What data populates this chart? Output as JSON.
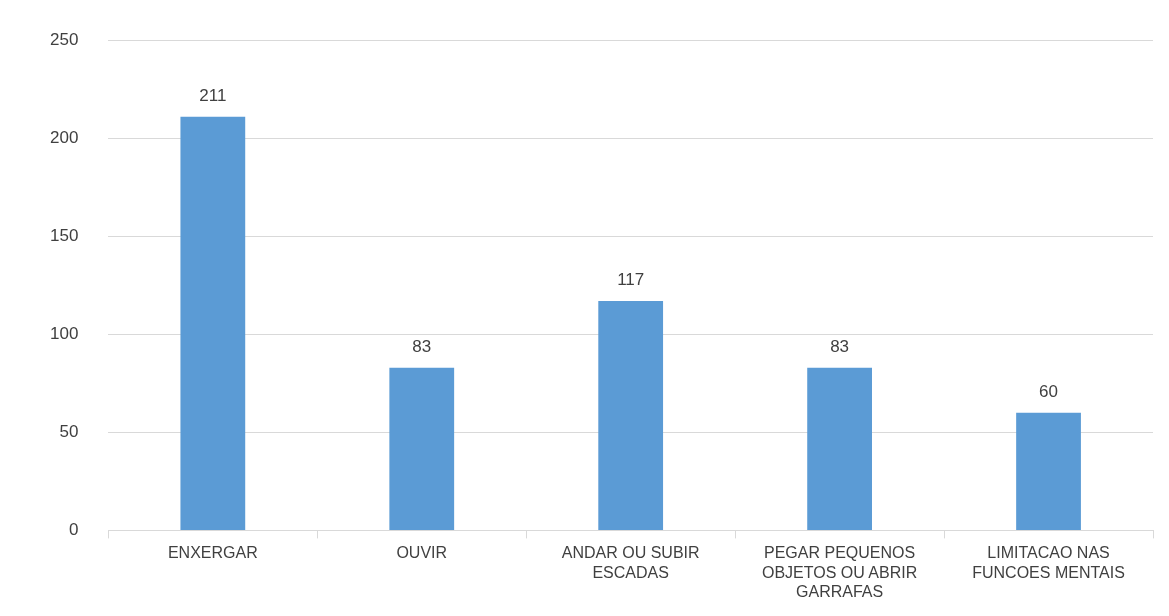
{
  "chart_data": {
    "type": "bar",
    "categories": [
      "ENXERGAR",
      "OUVIR",
      "ANDAR OU SUBIR ESCADAS",
      "PEGAR PEQUENOS OBJETOS OU ABRIR GARRAFAS",
      "LIMITACAO NAS FUNCOES MENTAIS"
    ],
    "values": [
      211,
      83,
      117,
      83,
      60
    ],
    "color": "#5b9bd5",
    "ylim": [
      0,
      250
    ],
    "yticks": [
      0,
      50,
      100,
      150,
      200,
      250
    ],
    "grid": "y",
    "data_labels": true,
    "legend": false
  }
}
